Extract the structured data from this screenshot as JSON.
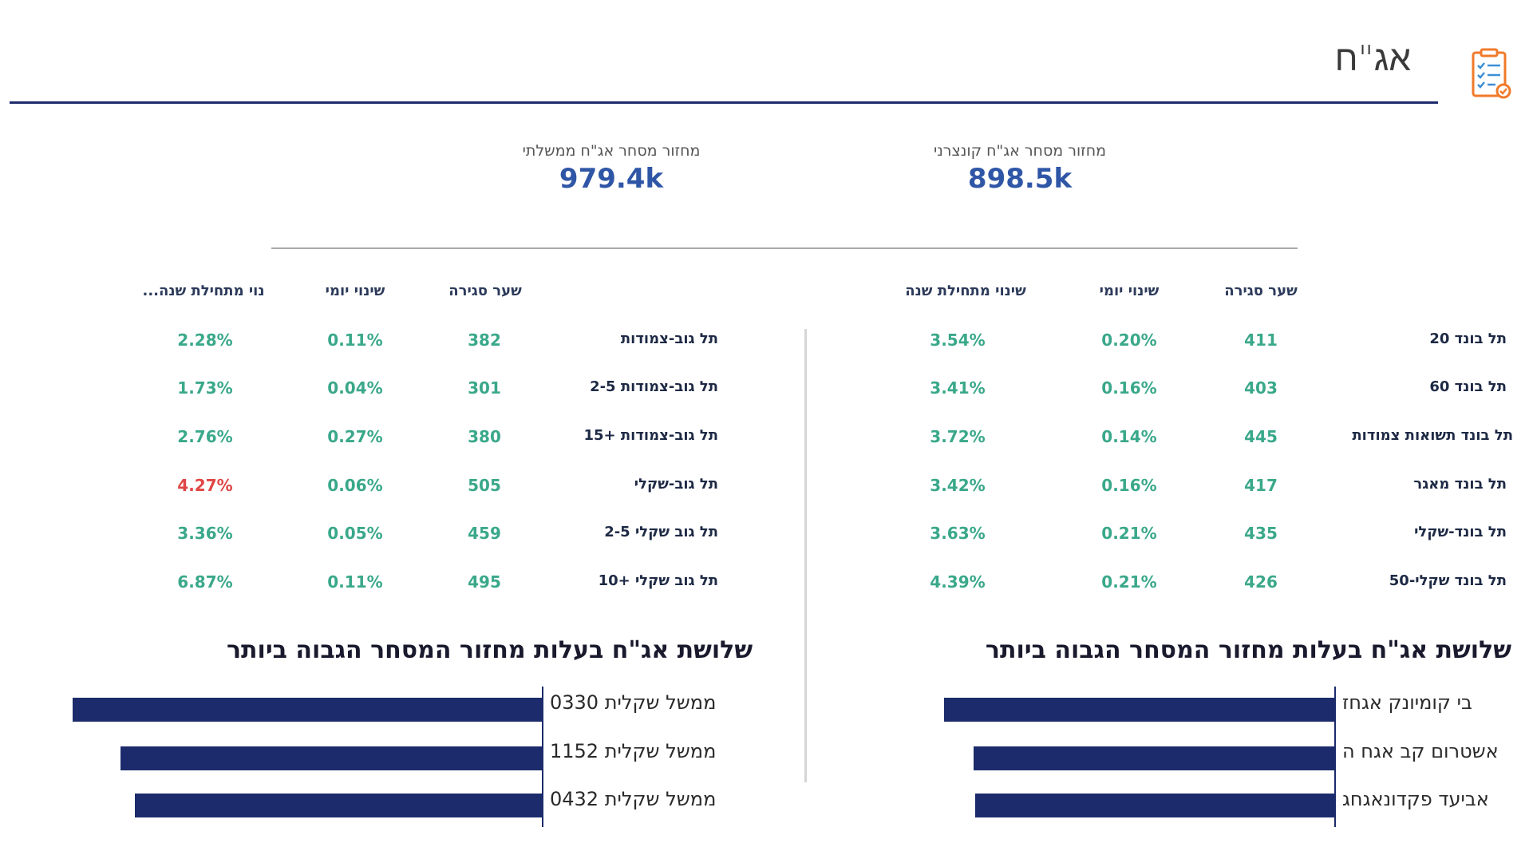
{
  "header": {
    "title": "אג\"ח",
    "icon": "checklist-icon"
  },
  "kpis": [
    {
      "label": "מחזור מסחר אג\"ח קונצרני",
      "value": "898.5k"
    },
    {
      "label": "מחזור מסחר אג\"ח ממשלתי",
      "value": "979.4k"
    }
  ],
  "right_table": {
    "headers": {
      "close": "שער סגירה",
      "daily": "שינוי יומי",
      "ytd": "שינוי מתחילת שנה"
    },
    "rows": [
      {
        "name": "תל בונד 20",
        "close": "411",
        "daily": "0.20%",
        "ytd": "3.54%"
      },
      {
        "name": "תל בונד 60",
        "close": "403",
        "daily": "0.16%",
        "ytd": "3.41%"
      },
      {
        "name": "תל בונד תשואות צמודות",
        "close": "445",
        "daily": "0.14%",
        "ytd": "3.72%"
      },
      {
        "name": "תל בונד מאגר",
        "close": "417",
        "daily": "0.16%",
        "ytd": "3.42%"
      },
      {
        "name": "תל בונד-שקלי",
        "close": "435",
        "daily": "0.21%",
        "ytd": "3.63%"
      },
      {
        "name": "תל בונד שקלי-50",
        "close": "426",
        "daily": "0.21%",
        "ytd": "4.39%"
      }
    ]
  },
  "left_table": {
    "headers": {
      "close": "שער סגירה",
      "daily": "שינוי יומי",
      "ytd": "...נוי מתחילת שנה"
    },
    "rows": [
      {
        "name": "תל גוב-צמודות",
        "close": "382",
        "daily": "0.11%",
        "ytd": "2.28%",
        "ytd_color": "green"
      },
      {
        "name": "תל גוב-צמודות 2-5",
        "close": "301",
        "daily": "0.04%",
        "ytd": "1.73%",
        "ytd_color": "green"
      },
      {
        "name": "תל גוב-צמודות +15",
        "close": "380",
        "daily": "0.27%",
        "ytd": "2.76%",
        "ytd_color": "green"
      },
      {
        "name": "תל גוב-שקלי",
        "close": "505",
        "daily": "0.06%",
        "ytd": "4.27%",
        "ytd_color": "red"
      },
      {
        "name": "תל גוב שקלי 2-5",
        "close": "459",
        "daily": "0.05%",
        "ytd": "3.36%",
        "ytd_color": "green"
      },
      {
        "name": "תל גוב שקלי +10",
        "close": "495",
        "daily": "0.11%",
        "ytd": "6.87%",
        "ytd_color": "green"
      }
    ]
  },
  "charts": [
    {
      "title": "שלושת אג\"ח בעלות מחזור המסחר הגבוה ביותר",
      "bars": [
        {
          "label": "בי קומיונק אגחז",
          "value": 0.94
        },
        {
          "label": "אשטרום קב אגח ה",
          "value": 0.87
        },
        {
          "label": "אביעד פקדונאגחג",
          "value": 0.866
        }
      ]
    },
    {
      "title": "שלושת אג\"ח בעלות מחזור המסחר הגבוה ביותר",
      "bars": [
        {
          "label": "ממשל שקלית 0330",
          "value": 0.98
        },
        {
          "label": "ממשל שקלית 1152",
          "value": 0.88
        },
        {
          "label": "ממשל שקלית 0432",
          "value": 0.85
        }
      ]
    }
  ],
  "colors": {
    "accent": "#2f56a6",
    "bar": "#1c2b6b",
    "positive": "#3aa88a",
    "negative": "#e04646",
    "header_line": "#1e2c6e"
  }
}
